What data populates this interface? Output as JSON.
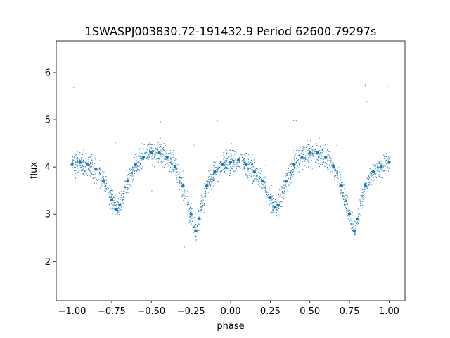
{
  "chart_data": {
    "type": "scatter",
    "title": "1SWASPJ003830.72-191432.9 Period 62600.79297s",
    "xlabel": "phase",
    "ylabel": "flux",
    "xlim": [
      -1.1,
      1.1
    ],
    "ylim": [
      1.17,
      6.67
    ],
    "xticks": [
      -1.0,
      -0.75,
      -0.5,
      -0.25,
      0.0,
      0.25,
      0.5,
      0.75,
      1.0
    ],
    "xtick_labels": [
      "−1.00",
      "−0.75",
      "−0.50",
      "−0.25",
      "0.00",
      "0.25",
      "0.50",
      "0.75",
      "1.00"
    ],
    "yticks": [
      2,
      3,
      4,
      5,
      6
    ],
    "ytick_labels": [
      "2",
      "3",
      "4",
      "5",
      "6"
    ],
    "grid": false,
    "marker_color": "#1f77b4",
    "series": [
      {
        "x": [
          -1.0,
          -0.95,
          -0.9,
          -0.85,
          -0.8,
          -0.75,
          -0.72,
          -0.7,
          -0.65,
          -0.6,
          -0.55,
          -0.5,
          -0.45,
          -0.4,
          -0.35,
          -0.3,
          -0.25,
          -0.22,
          -0.2,
          -0.15,
          -0.1,
          -0.05,
          0.0,
          0.05,
          0.1,
          0.15,
          0.2,
          0.25,
          0.28,
          0.3,
          0.35,
          0.4,
          0.45,
          0.5,
          0.55,
          0.6,
          0.65,
          0.7,
          0.75,
          0.78,
          0.8,
          0.85,
          0.9,
          0.95,
          1.0
        ],
        "y": [
          4.05,
          4.1,
          4.05,
          3.95,
          3.7,
          3.3,
          3.1,
          3.2,
          3.7,
          4.05,
          4.2,
          4.3,
          4.3,
          4.2,
          4.0,
          3.6,
          3.0,
          2.65,
          2.9,
          3.6,
          3.9,
          4.05,
          4.1,
          4.15,
          4.05,
          3.9,
          3.7,
          3.35,
          3.15,
          3.2,
          3.7,
          4.05,
          4.2,
          4.3,
          4.3,
          4.2,
          4.0,
          3.6,
          3.0,
          2.65,
          2.9,
          3.6,
          3.9,
          4.0,
          4.1
        ]
      }
    ]
  }
}
